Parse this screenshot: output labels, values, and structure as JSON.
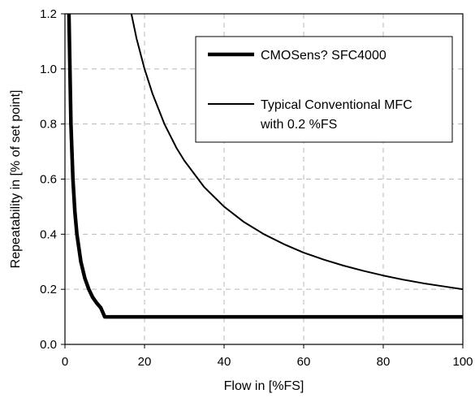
{
  "chart_data": {
    "type": "line",
    "title": "",
    "xlabel": "Flow in [%FS]",
    "ylabel": "Repeatability in [% of set point]",
    "xlim": [
      0,
      100
    ],
    "ylim": [
      0,
      1.2
    ],
    "x_ticks": [
      "0",
      "20",
      "40",
      "60",
      "80",
      "100"
    ],
    "y_ticks": [
      "0.0",
      "0.2",
      "0.4",
      "0.6",
      "0.8",
      "1.0",
      "1.2"
    ],
    "grid": true,
    "legend_position": "top-right",
    "series": [
      {
        "name": "CMOSens? SFC4000",
        "color": "#000000",
        "style": "thick",
        "points": [
          [
            1,
            1.2
          ],
          [
            1.5,
            0.8
          ],
          [
            2,
            0.6
          ],
          [
            2.5,
            0.48
          ],
          [
            3,
            0.4
          ],
          [
            4,
            0.3
          ],
          [
            5,
            0.24
          ],
          [
            6,
            0.2
          ],
          [
            7,
            0.17
          ],
          [
            8,
            0.15
          ],
          [
            9,
            0.133
          ],
          [
            10,
            0.1
          ],
          [
            20,
            0.1
          ],
          [
            40,
            0.1
          ],
          [
            60,
            0.1
          ],
          [
            80,
            0.1
          ],
          [
            100,
            0.1
          ]
        ]
      },
      {
        "name": "Typical Conventional MFC",
        "name_line2": "with 0.2 %FS",
        "color": "#000000",
        "style": "thin",
        "points": [
          [
            16.7,
            1.2
          ],
          [
            18,
            1.11
          ],
          [
            20,
            1.0
          ],
          [
            22,
            0.91
          ],
          [
            25,
            0.8
          ],
          [
            28,
            0.714
          ],
          [
            30,
            0.667
          ],
          [
            35,
            0.571
          ],
          [
            40,
            0.5
          ],
          [
            45,
            0.444
          ],
          [
            50,
            0.4
          ],
          [
            55,
            0.364
          ],
          [
            60,
            0.333
          ],
          [
            65,
            0.308
          ],
          [
            70,
            0.286
          ],
          [
            75,
            0.267
          ],
          [
            80,
            0.25
          ],
          [
            85,
            0.235
          ],
          [
            90,
            0.222
          ],
          [
            95,
            0.211
          ],
          [
            100,
            0.2
          ]
        ]
      }
    ]
  }
}
